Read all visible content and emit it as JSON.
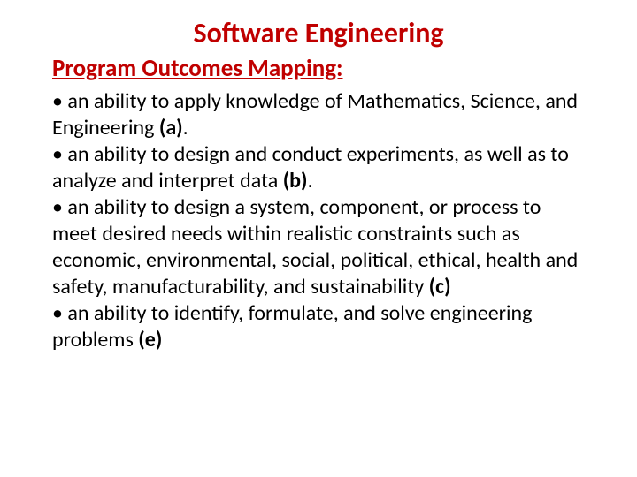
{
  "slide": {
    "title": "Software Engineering",
    "subheading": "Program Outcomes Mapping:",
    "bullets": [
      {
        "pre": "• an ability to apply knowledge of Mathematics, Science, and Engineering ",
        "bold": "(a)",
        "post": "."
      },
      {
        "pre": "• an ability to design and conduct experiments, as well as to analyze and interpret data  ",
        "bold": "(b)",
        "post": "."
      },
      {
        "pre": "• an ability to design a system, component, or process to meet desired needs within realistic constraints such as economic, environmental, social, political, ethical, health and safety, manufacturability, and sustainability ",
        "bold": "(c)",
        "post": ""
      },
      {
        "pre": "• an ability to identify, formulate, and solve engineering problems ",
        "bold": "(e)",
        "post": ""
      }
    ]
  },
  "colors": {
    "heading": "#c00000",
    "text": "#000000",
    "background": "#ffffff"
  },
  "typography": {
    "title_fontsize": 32,
    "subheading_fontsize": 27,
    "body_fontsize": 24,
    "font_family": "Calibri"
  }
}
